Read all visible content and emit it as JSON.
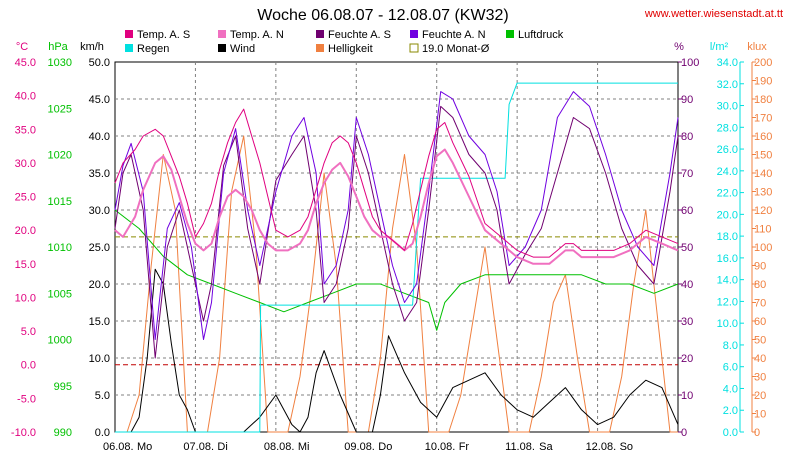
{
  "chart_data": {
    "type": "line",
    "title": "Woche 06.08.07 - 12.08.07 (KW32)",
    "source_label": "www.wetter.wiesenstadt.at.tt",
    "x_labels": [
      "06.08.",
      "Mo",
      "07.08.",
      "Di",
      "08.08.",
      "Mi",
      "09.08.",
      "Do",
      "10.08.",
      "Fr",
      "11.08.",
      "Sa",
      "12.08.",
      "So"
    ],
    "x_range_days": [
      0,
      7
    ],
    "grid": true,
    "legend": [
      {
        "name": "Temp. A. S",
        "color": "#e0007f"
      },
      {
        "name": "Temp. A. N",
        "color": "#f070c0"
      },
      {
        "name": "Feuchte A. S",
        "color": "#700070"
      },
      {
        "name": "Feuchte A. N",
        "color": "#7000e0"
      },
      {
        "name": "Luftdruck",
        "color": "#00c000"
      },
      {
        "name": "Regen",
        "color": "#00e0e0"
      },
      {
        "name": "Wind",
        "color": "#000000"
      },
      {
        "name": "Helligkeit",
        "color": "#f08040"
      },
      {
        "name": "19.0 Monat-Ø",
        "color": "#8a8a00"
      }
    ],
    "axes": {
      "temp": {
        "unit": "°C",
        "min": -10,
        "max": 45,
        "ticks": [
          "45.0",
          "40.0",
          "35.0",
          "30.0",
          "25.0",
          "20.0",
          "15.0",
          "10.0",
          "5.0",
          "0.0",
          "-5.0",
          "-10.0"
        ],
        "color": "#e0007f"
      },
      "pressure": {
        "unit": "hPa",
        "min": 990,
        "max": 1030,
        "ticks": [
          "1030",
          "1025",
          "1020",
          "1015",
          "1010",
          "1005",
          "1000",
          "995",
          "990"
        ],
        "color": "#00c000"
      },
      "wind": {
        "unit": "km/h",
        "min": 0,
        "max": 50,
        "ticks": [
          "50.0",
          "45.0",
          "40.0",
          "35.0",
          "30.0",
          "25.0",
          "20.0",
          "15.0",
          "10.0",
          "5.0",
          "0.0"
        ],
        "color": "#000000"
      },
      "humidity": {
        "unit": "%",
        "min": 0,
        "max": 100,
        "ticks": [
          "100",
          "90",
          "80",
          "70",
          "60",
          "50",
          "40",
          "30",
          "20",
          "10",
          "0"
        ],
        "color": "#700070"
      },
      "rain": {
        "unit": "l/m²",
        "min": 0,
        "max": 35,
        "ticks": [
          "34.0",
          "32.0",
          "30.0",
          "28.0",
          "26.0",
          "24.0",
          "22.0",
          "20.0",
          "18.0",
          "16.0",
          "14.0",
          "12.0",
          "10.0",
          "8.0",
          "6.0",
          "4.0",
          "2.0",
          "0.0"
        ],
        "color": "#00e0e0"
      },
      "light": {
        "unit": "klux",
        "min": 0,
        "max": 200,
        "ticks": [
          "200",
          "190",
          "180",
          "170",
          "160",
          "150",
          "140",
          "130",
          "120",
          "110",
          "100",
          "90",
          "80",
          "70",
          "60",
          "50",
          "40",
          "30",
          "20",
          "10",
          "0"
        ],
        "color": "#f08040"
      }
    },
    "reference_lines": [
      {
        "name": "19.0 Monat-Ø",
        "axis": "temp",
        "value": 19.0,
        "color": "#8a8a00",
        "style": "dashed"
      },
      {
        "name": "0 °C",
        "axis": "temp",
        "value": 0.0,
        "color": "#c00000",
        "style": "dashed"
      }
    ],
    "series": [
      {
        "name": "Temp. A. S",
        "axis": "temp",
        "color": "#e0007f",
        "x": [
          0,
          0.1,
          0.25,
          0.35,
          0.5,
          0.6,
          0.7,
          0.8,
          0.9,
          1.0,
          1.1,
          1.2,
          1.3,
          1.4,
          1.5,
          1.6,
          1.7,
          1.8,
          1.9,
          2.0,
          2.15,
          2.3,
          2.4,
          2.5,
          2.6,
          2.7,
          2.8,
          2.9,
          3.0,
          3.1,
          3.2,
          3.3,
          3.4,
          3.5,
          3.6,
          3.7,
          3.8,
          3.9,
          4.0,
          4.1,
          4.2,
          4.4,
          4.6,
          4.8,
          5.0,
          5.2,
          5.4,
          5.5,
          5.6,
          5.7,
          5.8,
          6.0,
          6.2,
          6.4,
          6.6,
          6.8,
          7.0
        ],
        "values": [
          27,
          30,
          32,
          34,
          35,
          34,
          31,
          28,
          24,
          19,
          21,
          24,
          29,
          33,
          36,
          38,
          34,
          30,
          25,
          20,
          19,
          20,
          22,
          26,
          30,
          33,
          34,
          33,
          30,
          26,
          22,
          20,
          19,
          18,
          17,
          21,
          26,
          31,
          35,
          36,
          33,
          28,
          21,
          19,
          17,
          16,
          16,
          17,
          18,
          18,
          17,
          17,
          17,
          18,
          20,
          19,
          18
        ]
      },
      {
        "name": "Temp. A. N",
        "axis": "temp",
        "color": "#f070c0",
        "x": [
          0,
          0.1,
          0.25,
          0.35,
          0.5,
          0.6,
          0.7,
          0.8,
          0.9,
          1.0,
          1.1,
          1.2,
          1.3,
          1.4,
          1.5,
          1.6,
          1.7,
          1.8,
          1.9,
          2.0,
          2.15,
          2.3,
          2.4,
          2.5,
          2.6,
          2.7,
          2.8,
          2.9,
          3.0,
          3.1,
          3.2,
          3.3,
          3.4,
          3.5,
          3.6,
          3.7,
          3.8,
          3.9,
          4.0,
          4.1,
          4.2,
          4.4,
          4.6,
          4.8,
          5.0,
          5.2,
          5.4,
          5.5,
          5.6,
          5.7,
          5.8,
          6.0,
          6.2,
          6.4,
          6.6,
          6.8,
          7.0
        ],
        "values": [
          20,
          19,
          22,
          26,
          30,
          31,
          29,
          25,
          21,
          18,
          17,
          18,
          22,
          25,
          26,
          25,
          23,
          20,
          18,
          17,
          17,
          18,
          20,
          24,
          27,
          29,
          30,
          28,
          25,
          22,
          20,
          19,
          19,
          18,
          17,
          18,
          22,
          27,
          31,
          32,
          30,
          25,
          20,
          18,
          16,
          15,
          15,
          16,
          17,
          17,
          16,
          16,
          16,
          17,
          19,
          18,
          17
        ]
      },
      {
        "name": "Feuchte A. S",
        "axis": "humidity",
        "color": "#700070",
        "x": [
          0,
          0.1,
          0.2,
          0.35,
          0.5,
          0.65,
          0.8,
          0.95,
          1.1,
          1.2,
          1.35,
          1.5,
          1.65,
          1.8,
          2.0,
          2.2,
          2.35,
          2.5,
          2.6,
          2.75,
          2.9,
          3.0,
          3.15,
          3.3,
          3.45,
          3.6,
          3.75,
          3.9,
          4.05,
          4.2,
          4.4,
          4.6,
          4.75,
          4.9,
          5.1,
          5.3,
          5.5,
          5.7,
          5.9,
          6.1,
          6.3,
          6.5,
          6.7,
          6.9,
          7.0
        ],
        "values": [
          55,
          70,
          75,
          60,
          20,
          50,
          60,
          45,
          30,
          40,
          72,
          80,
          55,
          40,
          68,
          75,
          80,
          60,
          35,
          40,
          55,
          80,
          70,
          55,
          40,
          30,
          35,
          60,
          88,
          85,
          75,
          70,
          60,
          40,
          48,
          55,
          70,
          85,
          82,
          70,
          55,
          45,
          40,
          65,
          80
        ]
      },
      {
        "name": "Feuchte A. N",
        "axis": "humidity",
        "color": "#7000e0",
        "x": [
          0,
          0.1,
          0.2,
          0.35,
          0.5,
          0.65,
          0.8,
          0.95,
          1.1,
          1.2,
          1.35,
          1.5,
          1.65,
          1.8,
          2.0,
          2.2,
          2.35,
          2.5,
          2.6,
          2.75,
          2.9,
          3.0,
          3.15,
          3.3,
          3.45,
          3.6,
          3.75,
          3.9,
          4.05,
          4.2,
          4.4,
          4.6,
          4.75,
          4.9,
          5.1,
          5.3,
          5.5,
          5.7,
          5.9,
          6.1,
          6.3,
          6.5,
          6.7,
          6.9,
          7.0
        ],
        "values": [
          60,
          72,
          78,
          65,
          25,
          55,
          62,
          50,
          25,
          35,
          70,
          82,
          60,
          45,
          65,
          80,
          85,
          70,
          40,
          45,
          60,
          85,
          75,
          60,
          45,
          35,
          40,
          65,
          92,
          90,
          80,
          75,
          65,
          45,
          50,
          60,
          85,
          92,
          88,
          75,
          60,
          50,
          45,
          70,
          85
        ]
      },
      {
        "name": "Luftdruck",
        "axis": "pressure",
        "color": "#00c000",
        "x": [
          0,
          0.3,
          0.6,
          0.9,
          1.2,
          1.5,
          1.8,
          2.1,
          2.4,
          2.7,
          3.0,
          3.3,
          3.6,
          3.9,
          4.0,
          4.1,
          4.3,
          4.6,
          4.9,
          5.2,
          5.5,
          5.8,
          6.1,
          6.4,
          6.7,
          7.0
        ],
        "values": [
          1014,
          1012,
          1009,
          1007,
          1006,
          1005,
          1004,
          1003,
          1004,
          1005,
          1006,
          1006,
          1005,
          1004,
          1001,
          1004,
          1006,
          1007,
          1007,
          1007,
          1007,
          1007,
          1006,
          1006,
          1005,
          1006
        ]
      },
      {
        "name": "Regen",
        "axis": "rain",
        "color": "#00e0e0",
        "x": [
          0,
          1.8,
          1.81,
          3.6,
          3.65,
          3.7,
          3.75,
          3.8,
          4.85,
          4.9,
          4.95,
          5.0,
          5.5,
          7.0
        ],
        "values": [
          0,
          0,
          12,
          12,
          12,
          12,
          18,
          24,
          24,
          31,
          32,
          33,
          33,
          33
        ]
      },
      {
        "name": "Wind",
        "axis": "wind",
        "color": "#000000",
        "x": [
          0,
          0.2,
          0.3,
          0.4,
          0.5,
          0.6,
          0.7,
          0.8,
          0.9,
          1.0,
          1.2,
          1.4,
          1.6,
          1.8,
          2.0,
          2.2,
          2.3,
          2.4,
          2.5,
          2.6,
          2.8,
          3.0,
          3.2,
          3.3,
          3.4,
          3.6,
          3.8,
          4.0,
          4.2,
          4.4,
          4.6,
          4.8,
          5.0,
          5.2,
          5.4,
          5.6,
          5.8,
          6.0,
          6.2,
          6.4,
          6.6,
          6.8,
          7.0
        ],
        "values": [
          0,
          0,
          2,
          10,
          22,
          20,
          12,
          5,
          3,
          0,
          0,
          0,
          0,
          2,
          5,
          1,
          0,
          2,
          8,
          11,
          5,
          0,
          0,
          5,
          13,
          8,
          4,
          2,
          6,
          7,
          8,
          5,
          3,
          2,
          4,
          6,
          3,
          1,
          2,
          5,
          7,
          6,
          1
        ]
      },
      {
        "name": "Helligkeit",
        "axis": "light",
        "color": "#f08040",
        "x": [
          0,
          0.15,
          0.3,
          0.45,
          0.6,
          0.75,
          0.9,
          1.15,
          1.3,
          1.45,
          1.6,
          1.75,
          1.9,
          2.15,
          2.3,
          2.45,
          2.6,
          2.75,
          2.9,
          3.15,
          3.3,
          3.45,
          3.6,
          3.75,
          3.9,
          4.15,
          4.3,
          4.45,
          4.6,
          4.75,
          4.9,
          5.15,
          5.3,
          5.45,
          5.6,
          5.75,
          5.9,
          6.15,
          6.3,
          6.45,
          6.6,
          6.75,
          6.9,
          7.0
        ],
        "values": [
          0,
          0,
          20,
          90,
          150,
          120,
          0,
          0,
          40,
          130,
          160,
          100,
          0,
          0,
          30,
          80,
          140,
          90,
          0,
          0,
          40,
          110,
          150,
          100,
          0,
          0,
          20,
          60,
          100,
          50,
          0,
          0,
          30,
          70,
          85,
          40,
          0,
          0,
          30,
          80,
          120,
          60,
          0,
          0
        ]
      }
    ]
  }
}
